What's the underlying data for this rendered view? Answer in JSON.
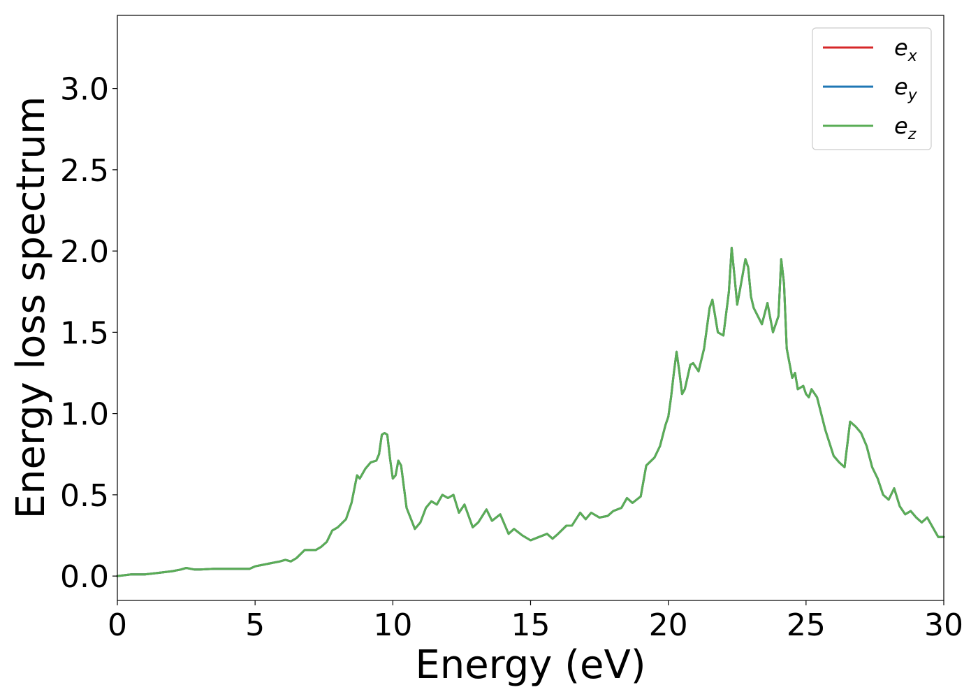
{
  "chart_data": {
    "type": "line",
    "xlabel": "Energy (eV)",
    "ylabel": "Energy loss spectrum",
    "xlim": [
      0,
      30
    ],
    "ylim": [
      -0.15,
      3.45
    ],
    "xticks": [
      0,
      5,
      10,
      15,
      20,
      25,
      30
    ],
    "xtick_labels": [
      "0",
      "5",
      "10",
      "15",
      "20",
      "25",
      "30"
    ],
    "yticks": [
      0.0,
      0.5,
      1.0,
      1.5,
      2.0,
      2.5,
      3.0
    ],
    "ytick_labels": [
      "0.0",
      "0.5",
      "1.0",
      "1.5",
      "2.0",
      "2.5",
      "3.0"
    ],
    "grid": false,
    "legend_position": "top-right",
    "x": [
      0,
      0.5,
      1.0,
      1.5,
      2.0,
      2.3,
      2.5,
      2.8,
      3.0,
      3.5,
      4.0,
      4.5,
      4.8,
      5.0,
      5.3,
      5.6,
      5.9,
      6.1,
      6.3,
      6.5,
      6.8,
      7.0,
      7.2,
      7.4,
      7.6,
      7.8,
      8.0,
      8.3,
      8.5,
      8.7,
      8.8,
      9.0,
      9.2,
      9.4,
      9.5,
      9.6,
      9.7,
      9.8,
      9.9,
      10.0,
      10.1,
      10.2,
      10.3,
      10.5,
      10.8,
      11.0,
      11.2,
      11.4,
      11.6,
      11.8,
      12.0,
      12.2,
      12.4,
      12.6,
      12.9,
      13.1,
      13.4,
      13.6,
      13.9,
      14.2,
      14.4,
      14.7,
      15.0,
      15.3,
      15.6,
      15.8,
      16.0,
      16.3,
      16.5,
      16.8,
      17.0,
      17.2,
      17.5,
      17.8,
      18.0,
      18.3,
      18.5,
      18.7,
      19.0,
      19.2,
      19.5,
      19.7,
      19.9,
      20.0,
      20.1,
      20.2,
      20.3,
      20.4,
      20.5,
      20.6,
      20.8,
      20.9,
      21.1,
      21.3,
      21.5,
      21.6,
      21.8,
      22.0,
      22.2,
      22.3,
      22.4,
      22.5,
      22.6,
      22.8,
      22.9,
      23.0,
      23.1,
      23.4,
      23.6,
      23.8,
      24.0,
      24.1,
      24.2,
      24.3,
      24.5,
      24.6,
      24.7,
      24.9,
      25.0,
      25.1,
      25.2,
      25.4,
      25.7,
      26.0,
      26.2,
      26.4,
      26.6,
      26.8,
      27.0,
      27.2,
      27.4,
      27.6,
      27.8,
      28.0,
      28.2,
      28.4,
      28.6,
      28.8,
      29.0,
      29.2,
      29.4,
      29.6,
      29.8,
      30.0
    ],
    "series": [
      {
        "name": "e_x",
        "color": "#d62728",
        "values": [
          0.0,
          0.01,
          0.01,
          0.02,
          0.03,
          0.04,
          0.05,
          0.04,
          0.04,
          0.045,
          0.045,
          0.045,
          0.045,
          0.06,
          0.07,
          0.08,
          0.09,
          0.1,
          0.09,
          0.11,
          0.16,
          0.16,
          0.16,
          0.18,
          0.21,
          0.28,
          0.3,
          0.35,
          0.45,
          0.62,
          0.6,
          0.66,
          0.7,
          0.71,
          0.75,
          0.87,
          0.88,
          0.87,
          0.72,
          0.6,
          0.62,
          0.71,
          0.68,
          0.42,
          0.29,
          0.33,
          0.42,
          0.46,
          0.44,
          0.5,
          0.48,
          0.5,
          0.39,
          0.44,
          0.3,
          0.33,
          0.41,
          0.34,
          0.38,
          0.26,
          0.29,
          0.25,
          0.22,
          0.24,
          0.26,
          0.23,
          0.26,
          0.31,
          0.31,
          0.39,
          0.35,
          0.39,
          0.36,
          0.37,
          0.4,
          0.42,
          0.48,
          0.45,
          0.49,
          0.68,
          0.73,
          0.8,
          0.93,
          0.98,
          1.1,
          1.25,
          1.38,
          1.26,
          1.12,
          1.15,
          1.3,
          1.31,
          1.26,
          1.4,
          1.65,
          1.7,
          1.5,
          1.48,
          1.75,
          2.02,
          1.85,
          1.67,
          1.76,
          1.95,
          1.9,
          1.72,
          1.65,
          1.55,
          1.68,
          1.5,
          1.6,
          1.95,
          1.8,
          1.4,
          1.22,
          1.25,
          1.15,
          1.17,
          1.12,
          1.1,
          1.15,
          1.1,
          0.9,
          0.74,
          0.7,
          0.67,
          0.95,
          0.92,
          0.88,
          0.8,
          0.67,
          0.6,
          0.5,
          0.47,
          0.54,
          0.43,
          0.38,
          0.4,
          0.36,
          0.33,
          0.36,
          0.3,
          0.24,
          0.24
        ]
      },
      {
        "name": "e_y",
        "color": "#1f77b4",
        "values": [
          0.0,
          0.01,
          0.01,
          0.02,
          0.03,
          0.04,
          0.05,
          0.04,
          0.04,
          0.045,
          0.045,
          0.045,
          0.045,
          0.06,
          0.07,
          0.08,
          0.09,
          0.1,
          0.09,
          0.11,
          0.16,
          0.16,
          0.16,
          0.18,
          0.21,
          0.28,
          0.3,
          0.35,
          0.45,
          0.62,
          0.6,
          0.66,
          0.7,
          0.71,
          0.75,
          0.87,
          0.88,
          0.87,
          0.72,
          0.6,
          0.62,
          0.71,
          0.68,
          0.42,
          0.29,
          0.33,
          0.42,
          0.46,
          0.44,
          0.5,
          0.48,
          0.5,
          0.39,
          0.44,
          0.3,
          0.33,
          0.41,
          0.34,
          0.38,
          0.26,
          0.29,
          0.25,
          0.22,
          0.24,
          0.26,
          0.23,
          0.26,
          0.31,
          0.31,
          0.39,
          0.35,
          0.39,
          0.36,
          0.37,
          0.4,
          0.42,
          0.48,
          0.45,
          0.49,
          0.68,
          0.73,
          0.8,
          0.93,
          0.98,
          1.1,
          1.25,
          1.38,
          1.26,
          1.12,
          1.15,
          1.3,
          1.31,
          1.26,
          1.4,
          1.65,
          1.7,
          1.5,
          1.48,
          1.75,
          2.02,
          1.85,
          1.67,
          1.76,
          1.95,
          1.9,
          1.72,
          1.65,
          1.55,
          1.68,
          1.5,
          1.6,
          1.95,
          1.8,
          1.4,
          1.22,
          1.25,
          1.15,
          1.17,
          1.12,
          1.1,
          1.15,
          1.1,
          0.9,
          0.74,
          0.7,
          0.67,
          0.95,
          0.92,
          0.88,
          0.8,
          0.67,
          0.6,
          0.5,
          0.47,
          0.54,
          0.43,
          0.38,
          0.4,
          0.36,
          0.33,
          0.36,
          0.3,
          0.24,
          0.24
        ]
      },
      {
        "name": "e_z",
        "color": "#5aad56",
        "values": [
          0.0,
          0.01,
          0.01,
          0.02,
          0.03,
          0.04,
          0.05,
          0.04,
          0.04,
          0.045,
          0.045,
          0.045,
          0.045,
          0.06,
          0.07,
          0.08,
          0.09,
          0.1,
          0.09,
          0.11,
          0.16,
          0.16,
          0.16,
          0.18,
          0.21,
          0.28,
          0.3,
          0.35,
          0.45,
          0.62,
          0.6,
          0.66,
          0.7,
          0.71,
          0.75,
          0.87,
          0.88,
          0.87,
          0.72,
          0.6,
          0.62,
          0.71,
          0.68,
          0.42,
          0.29,
          0.33,
          0.42,
          0.46,
          0.44,
          0.5,
          0.48,
          0.5,
          0.39,
          0.44,
          0.3,
          0.33,
          0.41,
          0.34,
          0.38,
          0.26,
          0.29,
          0.25,
          0.22,
          0.24,
          0.26,
          0.23,
          0.26,
          0.31,
          0.31,
          0.39,
          0.35,
          0.39,
          0.36,
          0.37,
          0.4,
          0.42,
          0.48,
          0.45,
          0.49,
          0.68,
          0.73,
          0.8,
          0.93,
          0.98,
          1.1,
          1.25,
          1.38,
          1.26,
          1.12,
          1.15,
          1.3,
          1.31,
          1.26,
          1.4,
          1.65,
          1.7,
          1.5,
          1.48,
          1.75,
          2.02,
          1.85,
          1.67,
          1.76,
          1.95,
          1.9,
          1.72,
          1.65,
          1.55,
          1.68,
          1.5,
          1.6,
          1.95,
          1.8,
          1.4,
          1.22,
          1.25,
          1.15,
          1.17,
          1.12,
          1.1,
          1.15,
          1.1,
          0.9,
          0.74,
          0.7,
          0.67,
          0.95,
          0.92,
          0.88,
          0.8,
          0.67,
          0.6,
          0.5,
          0.47,
          0.54,
          0.43,
          0.38,
          0.4,
          0.36,
          0.33,
          0.36,
          0.3,
          0.24,
          0.24
        ]
      }
    ],
    "legend": [
      {
        "base": "e",
        "sub": "x",
        "color": "#d62728"
      },
      {
        "base": "e",
        "sub": "y",
        "color": "#1f77b4"
      },
      {
        "base": "e",
        "sub": "z",
        "color": "#5aad56"
      }
    ]
  }
}
